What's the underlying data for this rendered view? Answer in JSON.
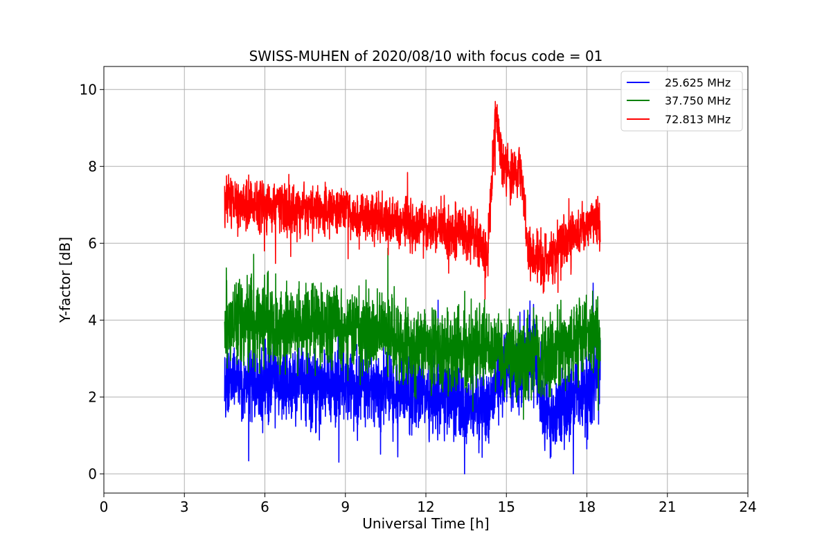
{
  "chart_data": {
    "type": "line",
    "title": "SWISS-MUHEN of 2020/08/10 with focus code = 01",
    "xlabel": "Universal Time [h]",
    "ylabel": "Y-factor [dB]",
    "xlim": [
      0,
      24
    ],
    "ylim": [
      -0.5,
      10.6
    ],
    "xticks": [
      0,
      3,
      6,
      9,
      12,
      15,
      18,
      21,
      24
    ],
    "yticks": [
      0,
      2,
      4,
      6,
      8,
      10
    ],
    "grid": true,
    "legend_position": "top-right",
    "series": [
      {
        "name": "25.625 MHz",
        "color": "#0000ff",
        "x": [
          4.5,
          4.8,
          5.2,
          5.6,
          6.0,
          6.3,
          6.6,
          7.0,
          7.5,
          8.0,
          8.5,
          9.0,
          9.5,
          10.0,
          10.5,
          11.0,
          11.3,
          11.6,
          12.0,
          12.5,
          13.0,
          13.3,
          13.7,
          14.0,
          14.3,
          14.6,
          14.9,
          15.2,
          15.5,
          15.8,
          16.1,
          16.4,
          16.7,
          17.0,
          17.4,
          17.8,
          18.2,
          18.5
        ],
        "y": [
          2.4,
          2.5,
          2.4,
          2.4,
          2.3,
          2.4,
          2.4,
          2.3,
          2.3,
          2.3,
          2.3,
          2.3,
          2.2,
          2.3,
          2.2,
          2.1,
          2.0,
          2.0,
          2.0,
          2.0,
          1.9,
          1.9,
          1.8,
          1.8,
          1.8,
          2.4,
          2.6,
          2.6,
          2.8,
          3.0,
          2.9,
          1.6,
          1.4,
          1.6,
          1.9,
          2.1,
          2.3,
          2.5
        ],
        "spread": 0.9
      },
      {
        "name": "37.750 MHz",
        "color": "#008000",
        "x": [
          4.5,
          4.8,
          5.2,
          5.6,
          6.0,
          6.3,
          6.6,
          7.0,
          7.5,
          8.0,
          8.5,
          9.0,
          9.5,
          10.0,
          10.5,
          11.0,
          11.3,
          11.6,
          12.0,
          12.5,
          13.0,
          13.3,
          13.7,
          14.0,
          14.3,
          14.6,
          14.9,
          15.2,
          15.5,
          15.8,
          16.1,
          16.4,
          16.7,
          17.0,
          17.4,
          17.8,
          18.2,
          18.5
        ],
        "y": [
          3.9,
          4.0,
          4.0,
          3.9,
          3.9,
          3.9,
          3.8,
          3.8,
          3.8,
          3.8,
          3.8,
          3.7,
          3.7,
          3.7,
          3.6,
          3.4,
          3.3,
          3.3,
          3.3,
          3.3,
          3.2,
          3.2,
          3.2,
          3.3,
          3.4,
          3.3,
          3.0,
          3.0,
          3.0,
          3.2,
          3.2,
          3.1,
          3.0,
          3.3,
          3.5,
          3.6,
          3.7,
          3.8
        ],
        "spread": 0.9
      },
      {
        "name": "72.813 MHz",
        "color": "#ff0000",
        "x": [
          4.5,
          4.8,
          5.2,
          5.6,
          6.0,
          6.3,
          6.6,
          7.0,
          7.5,
          8.0,
          8.5,
          9.0,
          9.5,
          10.0,
          10.5,
          11.0,
          11.3,
          11.6,
          12.0,
          12.5,
          13.0,
          13.3,
          13.7,
          14.0,
          14.3,
          14.6,
          14.9,
          15.2,
          15.5,
          15.8,
          16.1,
          16.4,
          16.7,
          17.0,
          17.4,
          17.8,
          18.2,
          18.5
        ],
        "y": [
          7.1,
          7.1,
          7.0,
          7.0,
          6.9,
          7.0,
          7.0,
          6.9,
          6.9,
          6.9,
          6.8,
          6.8,
          6.7,
          6.7,
          6.6,
          6.5,
          6.5,
          6.5,
          6.4,
          6.4,
          6.3,
          6.3,
          6.2,
          6.1,
          5.6,
          9.4,
          8.0,
          7.7,
          8.0,
          5.9,
          5.7,
          5.5,
          5.6,
          6.0,
          6.2,
          6.3,
          6.5,
          6.6
        ],
        "spread": 0.55
      }
    ]
  }
}
